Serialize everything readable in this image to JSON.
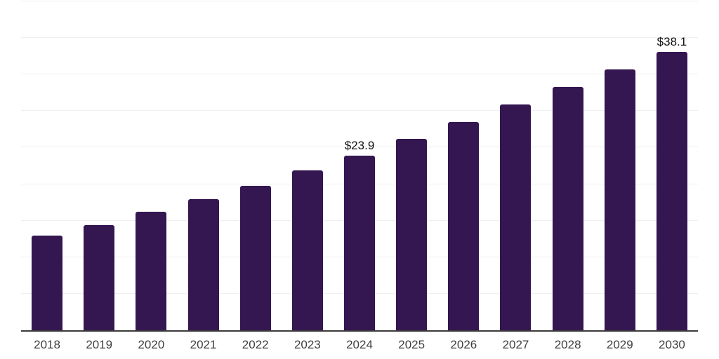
{
  "chart_data": {
    "type": "bar",
    "title": "",
    "categories": [
      "2018",
      "2019",
      "2020",
      "2021",
      "2022",
      "2023",
      "2024",
      "2025",
      "2026",
      "2027",
      "2028",
      "2029",
      "2030"
    ],
    "values": [
      13.0,
      14.4,
      16.2,
      17.9,
      19.8,
      21.9,
      23.9,
      26.2,
      28.5,
      30.9,
      33.3,
      35.7,
      38.1
    ],
    "data_labels": [
      "",
      "",
      "",
      "",
      "",
      "",
      "$23.9",
      "",
      "",
      "",
      "",
      "",
      "$38.1"
    ],
    "xlabel": "",
    "ylabel": "",
    "ylim": [
      0,
      45
    ],
    "gridline_step": 5,
    "grid": "horizontal-only",
    "legend_position": "none",
    "y_axis_labels_visible": false,
    "colors": {
      "bar": "#341651",
      "gridline": "#efefef",
      "axis_line": "#3b3b3b",
      "tick_label": "#3f3f3f",
      "data_label": "#111111",
      "background": "#ffffff"
    }
  }
}
